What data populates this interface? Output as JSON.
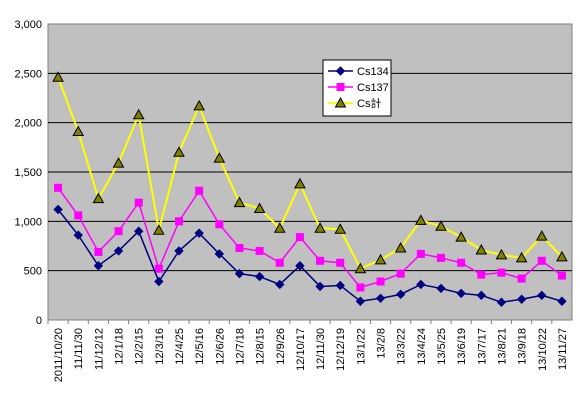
{
  "chart_data": {
    "type": "line",
    "title": "",
    "xlabel": "",
    "ylabel": "",
    "ylim": [
      0,
      3000
    ],
    "yticks": [
      "0",
      "500",
      "1,000",
      "1,500",
      "2,000",
      "2,500",
      "3,000"
    ],
    "grid": "horizontal",
    "legend_position": "top-right",
    "plot_background": "#c0c0c0",
    "categories": [
      "2011/10/20",
      "11/11/30",
      "11/12/12",
      "12/1/18",
      "12/2/15",
      "12/3/16",
      "12/4/25",
      "12/5/16",
      "12/6/26",
      "12/7/18",
      "12/8/15",
      "12/9/26",
      "12/10/17",
      "12/11/30",
      "12/12/19",
      "13/1/22",
      "13/2/8",
      "13/3/22",
      "13/4/24",
      "13/5/25",
      "13/6/19",
      "13/7/17",
      "13/8/21",
      "13/9/18",
      "13/10/22",
      "13/11/27"
    ],
    "series": [
      {
        "name": "Cs134",
        "color": "#000080",
        "marker": "diamond",
        "values": [
          1120,
          860,
          550,
          700,
          900,
          390,
          700,
          880,
          670,
          470,
          440,
          360,
          550,
          340,
          350,
          190,
          220,
          260,
          360,
          320,
          270,
          250,
          180,
          210,
          250,
          190
        ]
      },
      {
        "name": "Cs137",
        "color": "#ff00ff",
        "marker": "square",
        "values": [
          1340,
          1060,
          690,
          900,
          1190,
          520,
          1000,
          1310,
          970,
          730,
          700,
          580,
          840,
          600,
          580,
          330,
          390,
          470,
          670,
          630,
          580,
          460,
          480,
          420,
          600,
          450
        ]
      },
      {
        "name": "Cs計",
        "color": "#ffff00",
        "marker": "triangle",
        "values": [
          2460,
          1910,
          1230,
          1590,
          2080,
          910,
          1700,
          2170,
          1640,
          1190,
          1130,
          930,
          1380,
          930,
          920,
          520,
          610,
          730,
          1010,
          950,
          840,
          710,
          660,
          630,
          850,
          640
        ]
      }
    ]
  }
}
